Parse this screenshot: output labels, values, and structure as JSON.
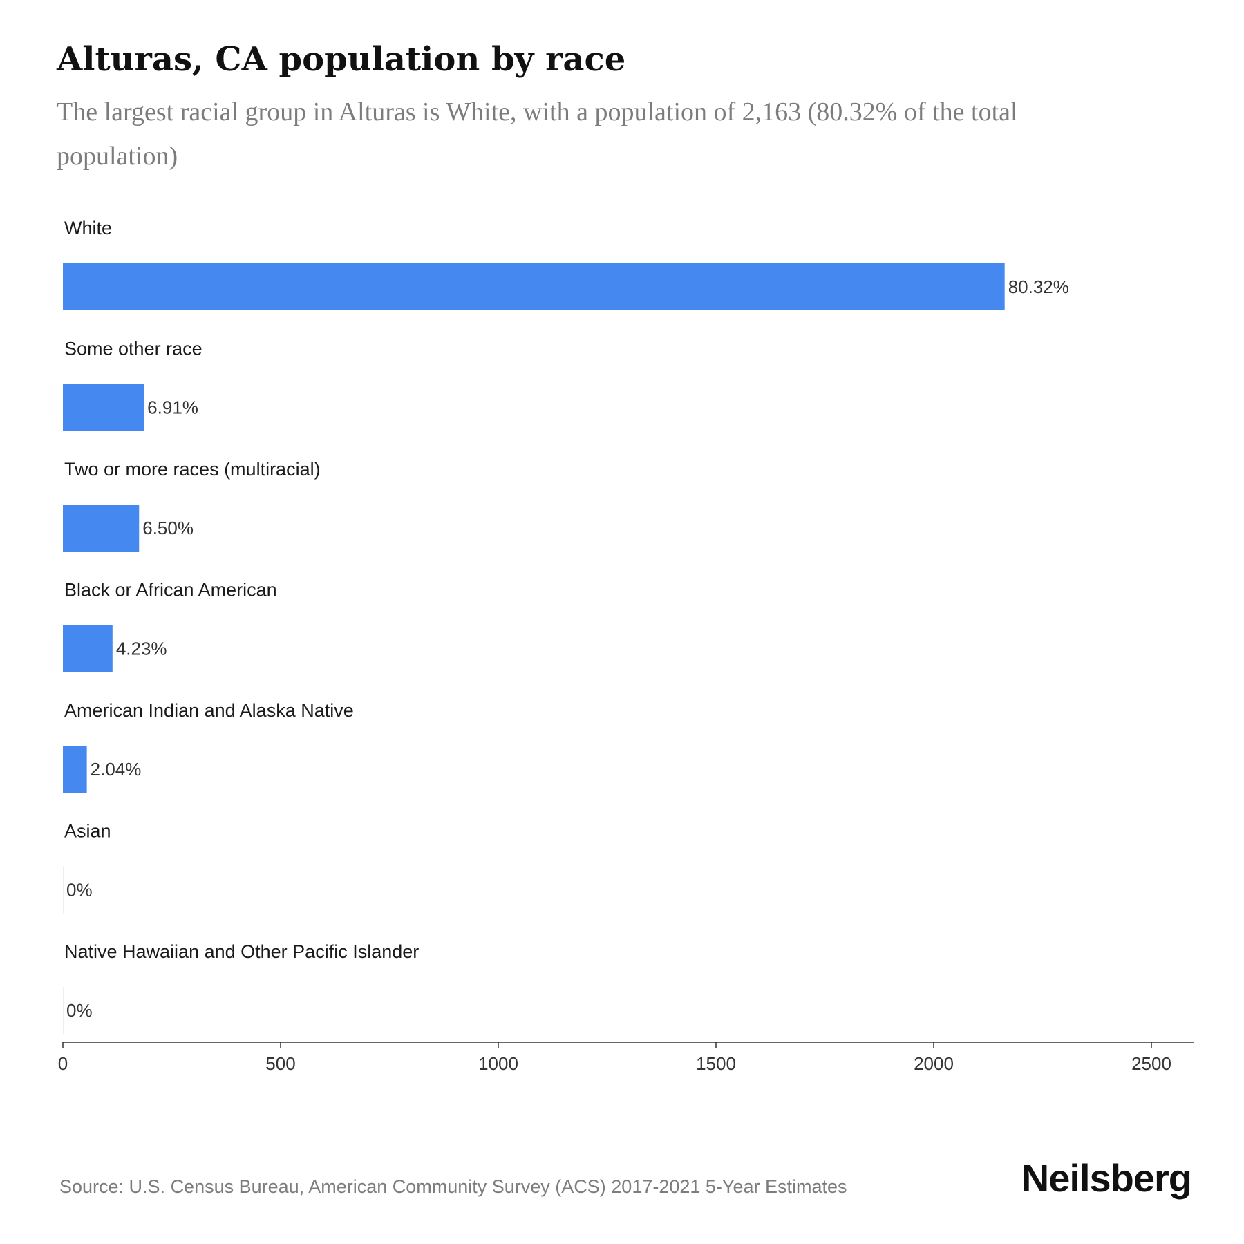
{
  "title": "Alturas, CA population by race",
  "subtitle": "The largest racial group in Alturas is White, with a population of 2,163 (80.32% of the total population)",
  "source": "Source: U.S. Census Bureau, American Community Survey (ACS) 2017-2021 5-Year Estimates",
  "brand": "Neilsberg",
  "colors": {
    "bar": "#4589f0",
    "axis": "#333333"
  },
  "chart_data": {
    "type": "bar",
    "orientation": "horizontal",
    "categories": [
      "White",
      "Some other race",
      "Two or more races (multiracial)",
      "Black or African American",
      "American Indian and Alaska Native",
      "Asian",
      "Native Hawaiian and Other Pacific Islander"
    ],
    "values": [
      2163,
      186,
      175,
      114,
      55,
      0,
      0
    ],
    "value_labels": [
      "80.32%",
      "6.91%",
      "6.50%",
      "4.23%",
      "2.04%",
      "0%",
      "0%"
    ],
    "xlim": [
      0,
      2600
    ],
    "xticks": [
      0,
      500,
      1000,
      1500,
      2000,
      2500
    ],
    "grid": false,
    "legend": "none"
  }
}
